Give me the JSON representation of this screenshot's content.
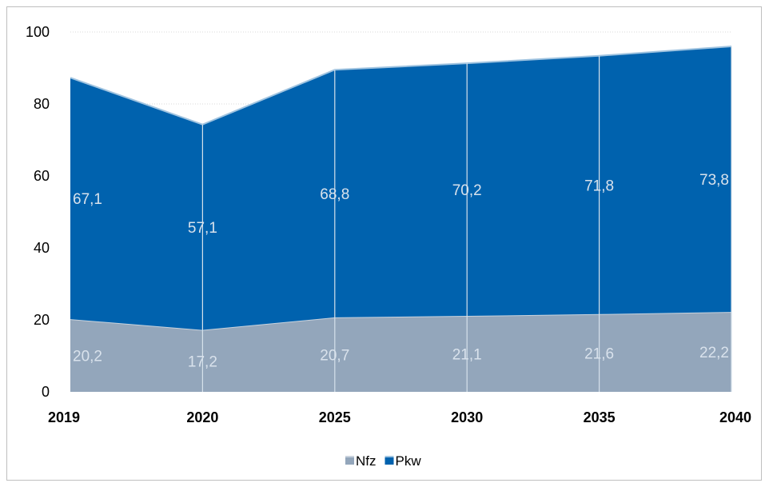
{
  "chart_data": {
    "type": "area",
    "stacked": true,
    "categories": [
      "2019",
      "2020",
      "2025",
      "2030",
      "2035",
      "2040"
    ],
    "series": [
      {
        "name": "Nfz",
        "values": [
          20.2,
          17.2,
          20.7,
          21.1,
          21.6,
          22.2
        ],
        "color": "#93a6bb"
      },
      {
        "name": "Pkw",
        "values": [
          67.1,
          57.1,
          68.8,
          70.2,
          71.8,
          73.8
        ],
        "color": "#0062ae"
      }
    ],
    "data_labels": {
      "Nfz": [
        "20,2",
        "17,2",
        "20,7",
        "21,1",
        "21,6",
        "22,2"
      ],
      "Pkw": [
        "67,1",
        "57,1",
        "68,8",
        "70,2",
        "71,8",
        "73,8"
      ]
    },
    "yticks": [
      "0",
      "20",
      "40",
      "60",
      "80",
      "100"
    ],
    "ylim": [
      0,
      100
    ],
    "ytick_values": [
      0,
      20,
      40,
      60,
      80,
      100
    ],
    "grid": true,
    "legend": {
      "position": "bottom",
      "entries": [
        "Nfz",
        "Pkw"
      ]
    },
    "title": "",
    "xlabel": "",
    "ylabel": ""
  }
}
